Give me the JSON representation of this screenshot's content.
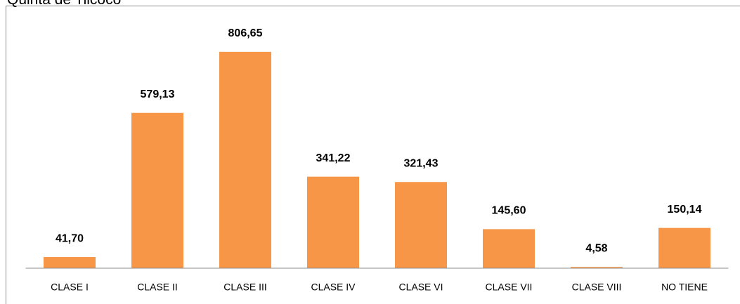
{
  "chart_data": {
    "type": "bar",
    "title": "Quinta de Tilcoco",
    "categories": [
      "CLASE I",
      "CLASE II",
      "CLASE III",
      "CLASE IV",
      "CLASE VI",
      "CLASE VII",
      "CLASE VIII",
      "NO TIENE"
    ],
    "values": [
      41.7,
      579.13,
      806.65,
      341.22,
      321.43,
      145.6,
      4.58,
      150.14
    ],
    "value_labels": [
      "41,70",
      "579,13",
      "806,65",
      "341,22",
      "321,43",
      "145,60",
      "4,58",
      "150,14"
    ],
    "color": "#f79646",
    "ylim": [
      0,
      1000
    ]
  }
}
